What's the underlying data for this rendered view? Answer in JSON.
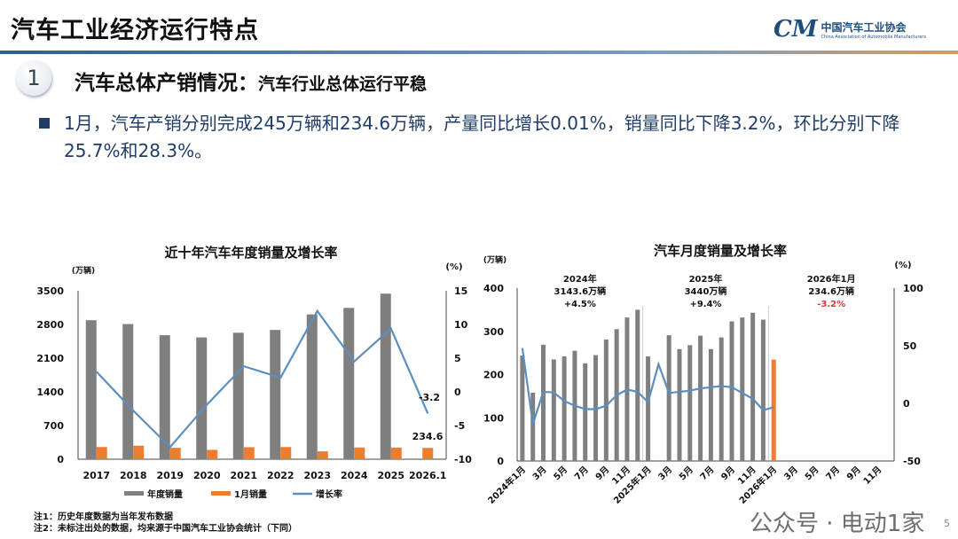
{
  "header": {
    "title": "汽车工业经济运行特点",
    "logo_cn": "中国汽车工业协会",
    "logo_en": "China Association of Automobile Manufacturers",
    "logo_mark": "CM"
  },
  "section": {
    "number": "1",
    "title": "汽车总体产销情况：",
    "subtitle": "汽车行业总体运行平稳"
  },
  "bullet": "1月，汽车产销分别完成245万辆和234.6万辆，产量同比增长0.01%，销量同比下降3.2%，环比分别下降25.7%和28.3%。",
  "notes": [
    "注1：历史年度数据为当年发布数据",
    "注2：未标注出处的数据，均来源于中国汽车工业协会统计（下同）"
  ],
  "watermark": "公众号 · 电动1家",
  "page_number": "5",
  "colors": {
    "bar": "#7f7f7f",
    "jan": "#ed7d31",
    "line": "#5b8fbf",
    "red": "#e0303a"
  },
  "chart_data": [
    {
      "type": "bar",
      "title": "近十年汽车年度销量及增长率",
      "ylabel": "(万辆)",
      "y2label": "(%)",
      "ylim": [
        0,
        3500
      ],
      "y2lim": [
        -10,
        15
      ],
      "yticks": [
        "0",
        "700",
        "1400",
        "2100",
        "2800",
        "3500"
      ],
      "y2ticks": [
        "-10",
        "-5",
        "0",
        "5",
        "10",
        "15"
      ],
      "categories": [
        "2017",
        "2018",
        "2019",
        "2020",
        "2021",
        "2022",
        "2023",
        "2024",
        "2025",
        "2026.1"
      ],
      "series": [
        {
          "name": "年度销量",
          "values": [
            2888,
            2808,
            2577,
            2531,
            2628,
            2686,
            3009,
            3144,
            3440,
            null
          ]
        },
        {
          "name": "1月销量",
          "values": [
            253,
            281,
            237,
            194,
            250,
            253,
            164,
            244,
            242,
            234.6
          ]
        },
        {
          "name": "增长率",
          "axis": "right",
          "values": [
            3.0,
            -2.8,
            -8.2,
            -1.9,
            3.8,
            2.1,
            12.0,
            4.5,
            9.4,
            -3.2
          ]
        }
      ],
      "labels": {
        "growth_last": "-3.2",
        "jan_last": "234.6"
      },
      "legend": "bottom"
    },
    {
      "type": "bar",
      "title": "汽车月度销量及增长率",
      "ylabel": "(万辆)",
      "y2label": "(%)",
      "ylim": [
        0,
        400
      ],
      "y2lim": [
        -50,
        100
      ],
      "yticks": [
        "0",
        "100",
        "200",
        "300",
        "400"
      ],
      "y2ticks": [
        "-50",
        "0",
        "50",
        "100"
      ],
      "xticks": [
        "2024年1月",
        "3月",
        "5月",
        "7月",
        "9月",
        "11月",
        "2025年1月",
        "3月",
        "5月",
        "7月",
        "9月",
        "11月",
        "2026年1月",
        "3月",
        "5月",
        "7月",
        "9月",
        "11月"
      ],
      "sales": [
        244,
        158,
        269,
        235,
        242,
        255,
        226,
        245,
        281,
        305,
        332,
        350,
        242,
        null,
        291,
        259,
        268,
        290,
        259,
        286,
        323,
        332,
        343,
        327,
        234.6
      ],
      "growth": [
        48,
        -18,
        10,
        9.5,
        2,
        -2,
        -5,
        -5,
        -2,
        7,
        12,
        10,
        1,
        34,
        9,
        10,
        11,
        13,
        14,
        15,
        14,
        9,
        4,
        -6,
        -3.2
      ],
      "annotations": [
        {
          "l1": "2024年",
          "l2": "3143.6万辆",
          "l3": "+4.5%"
        },
        {
          "l1": "2025年",
          "l2": "3440万辆",
          "l3": "+9.4%"
        },
        {
          "l1": "2026年1月",
          "l2": "234.6万辆",
          "l3": "-3.2%"
        }
      ]
    }
  ]
}
